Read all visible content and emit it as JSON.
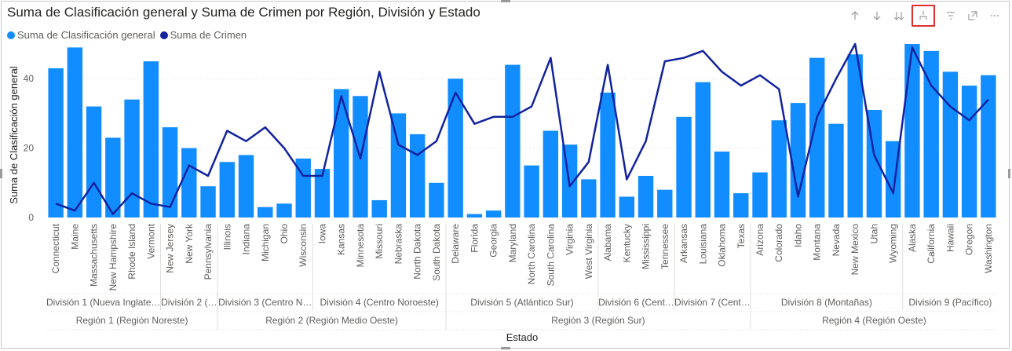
{
  "title": "Suma de Clasificación general y Suma de Crimen por Región, División y Estado",
  "legend": [
    {
      "label": "Suma de Clasificación general",
      "color": "#118DFF"
    },
    {
      "label": "Suma de Crimen",
      "color": "#12239E"
    }
  ],
  "toolbar": [
    "arrow-up-icon",
    "arrow-down-icon",
    "double-arrow-down-icon",
    "expand-hierarchy-icon",
    "filter-icon",
    "focus-mode-icon",
    "more-options-icon"
  ],
  "chart_data": {
    "type": "bar",
    "combo": "bar + line",
    "xlabel": "Estado",
    "ylabel": "Suma de Clasificación general",
    "ylim": [
      0,
      50
    ],
    "yticks": [
      0,
      20,
      40
    ],
    "grid": true,
    "legend_position": "top-left",
    "categories": [
      "Connecticut",
      "Maine",
      "Massachusetts",
      "New Hampshire",
      "Rhode Island",
      "Vermont",
      "New Jersey",
      "New York",
      "Pennsylvania",
      "Illinois",
      "Indiana",
      "Michigan",
      "Ohio",
      "Wisconsin",
      "Iowa",
      "Kansas",
      "Minnesota",
      "Missouri",
      "Nebraska",
      "North Dakota",
      "South Dakota",
      "Delaware",
      "Florida",
      "Georgia",
      "Maryland",
      "North Carolina",
      "South Carolina",
      "Virginia",
      "West Virginia",
      "Alabama",
      "Kentucky",
      "Mississippi",
      "Tennessee",
      "Arkansas",
      "Louisiana",
      "Oklahoma",
      "Texas",
      "Arizona",
      "Colorado",
      "Idaho",
      "Montana",
      "Nevada",
      "New Mexico",
      "Utah",
      "Wyoming",
      "Alaska",
      "California",
      "Hawaii",
      "Oregon",
      "Washington"
    ],
    "series": [
      {
        "name": "Suma de Clasificación general",
        "kind": "bar",
        "color": "#118DFF",
        "values": [
          43,
          49,
          32,
          23,
          34,
          45,
          26,
          20,
          9,
          16,
          18,
          3,
          4,
          17,
          14,
          37,
          35,
          5,
          30,
          24,
          10,
          40,
          1,
          2,
          44,
          15,
          25,
          21,
          11,
          36,
          6,
          12,
          8,
          29,
          39,
          19,
          7,
          13,
          28,
          33,
          46,
          27,
          47,
          31,
          22,
          50,
          48,
          42,
          38,
          41
        ]
      },
      {
        "name": "Suma de Crimen",
        "kind": "line",
        "color": "#12239E",
        "values": [
          4,
          2,
          10,
          1,
          7,
          4,
          3,
          15,
          12,
          25,
          22,
          26,
          20,
          12,
          12,
          35,
          17,
          42,
          21,
          18,
          22,
          36,
          27,
          29,
          29,
          32,
          46,
          9,
          16,
          44,
          11,
          22,
          45,
          46,
          48,
          42,
          38,
          41,
          37,
          6,
          29,
          40,
          50,
          18,
          7,
          49,
          38,
          32,
          28,
          34
        ]
      }
    ],
    "divisions": [
      {
        "label": "División 1 (Nueva Inglate…",
        "count": 6
      },
      {
        "label": "División 2 (…",
        "count": 3
      },
      {
        "label": "División 3 (Centro N…",
        "count": 5
      },
      {
        "label": "División 4 (Centro Noroeste)",
        "count": 7
      },
      {
        "label": "División 5 (Atlántico Sur)",
        "count": 8
      },
      {
        "label": "División 6 (Cent…",
        "count": 4
      },
      {
        "label": "División 7 (Cent…",
        "count": 4
      },
      {
        "label": "División 8 (Montañas)",
        "count": 8
      },
      {
        "label": "División 9 (Pacífico)",
        "count": 5
      }
    ],
    "regions": [
      {
        "label": "Región 1 (Región Noreste)",
        "count": 9
      },
      {
        "label": "Región 2 (Región Medio Oeste)",
        "count": 12
      },
      {
        "label": "Región 3 (Región Sur)",
        "count": 16
      },
      {
        "label": "Región 4 (Región Oeste)",
        "count": 13
      }
    ]
  }
}
